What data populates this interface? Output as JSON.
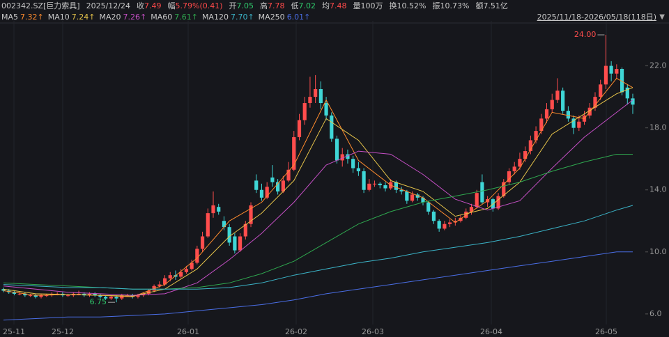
{
  "header": {
    "code": "002342.SZ[巨力索具]",
    "date": "2025/12/24",
    "items": [
      {
        "k": "收",
        "v": "7.49",
        "tone": "up"
      },
      {
        "k": "幅",
        "v": "5.79%(0.41)",
        "tone": "up"
      },
      {
        "k": "开",
        "v": "7.05",
        "tone": "dn"
      },
      {
        "k": "高",
        "v": "7.78",
        "tone": "up"
      },
      {
        "k": "低",
        "v": "7.02",
        "tone": "dn"
      },
      {
        "k": "均",
        "v": "7.48",
        "tone": "up"
      },
      {
        "k": "量",
        "v": "100万",
        "tone": "plain"
      },
      {
        "k": "换",
        "v": "10.52%",
        "tone": "plain"
      },
      {
        "k": "振",
        "v": "10.73%",
        "tone": "plain"
      },
      {
        "k": "额",
        "v": "7.51亿",
        "tone": "plain"
      }
    ],
    "range": "2025/11/18-2026/05/18(118日)",
    "menu": "▼"
  },
  "chart_data": {
    "type": "candlestick",
    "up_color": "#ff4d4d",
    "down_color": "#3fd6d6",
    "ylim": [
      5.5,
      24.9
    ],
    "yticks": [
      {
        "value": 6,
        "label": "6.0"
      },
      {
        "value": 10,
        "label": "10.0"
      },
      {
        "value": 14,
        "label": "14.0"
      },
      {
        "value": 18,
        "label": "18.0"
      },
      {
        "value": 22,
        "label": "22.0"
      }
    ],
    "xlim": [
      0,
      117
    ],
    "xlabels": [
      "25-11",
      "25-12",
      "26-01",
      "26-02",
      "26-03",
      "26-04",
      "26-05"
    ],
    "annotations": [
      {
        "value": 24,
        "label": "24.00",
        "at": "high"
      },
      {
        "value": 6.75,
        "label": "6.75",
        "at": "low"
      }
    ],
    "candles": [
      [
        7.6,
        7.7,
        7.4,
        7.5
      ],
      [
        7.5,
        7.6,
        7.3,
        7.4
      ],
      [
        7.4,
        7.5,
        7.2,
        7.3
      ],
      [
        7.3,
        7.4,
        7.2,
        7.3
      ],
      [
        7.3,
        7.4,
        7.1,
        7.2
      ],
      [
        7.2,
        7.3,
        7.1,
        7.2
      ],
      [
        7.2,
        7.3,
        7.0,
        7.1
      ],
      [
        7.1,
        7.3,
        7.0,
        7.2
      ],
      [
        7.2,
        7.3,
        7.1,
        7.2
      ],
      [
        7.2,
        7.4,
        7.1,
        7.3
      ],
      [
        7.3,
        7.4,
        7.2,
        7.3
      ],
      [
        7.3,
        7.4,
        7.1,
        7.2
      ],
      [
        7.2,
        7.3,
        7.1,
        7.2
      ],
      [
        7.2,
        7.4,
        7.1,
        7.3
      ],
      [
        7.3,
        7.5,
        7.2,
        7.3
      ],
      [
        7.3,
        7.4,
        7.1,
        7.2
      ],
      [
        7.2,
        7.4,
        7.1,
        7.3
      ],
      [
        7.3,
        7.4,
        7.1,
        7.2
      ],
      [
        7.2,
        7.3,
        7.0,
        7.1
      ],
      [
        7.1,
        7.2,
        6.9,
        7.0
      ],
      [
        7.0,
        7.2,
        6.9,
        7.1
      ],
      [
        7.1,
        7.2,
        6.75,
        7.0
      ],
      [
        7.0,
        7.3,
        6.9,
        7.2
      ],
      [
        7.2,
        7.3,
        7.1,
        7.2
      ],
      [
        7.2,
        7.3,
        7.0,
        7.1
      ],
      [
        7.1,
        7.3,
        7.0,
        7.2
      ],
      [
        7.2,
        7.4,
        7.1,
        7.3
      ],
      [
        7.3,
        7.6,
        7.2,
        7.5
      ],
      [
        7.5,
        7.9,
        7.4,
        7.8
      ],
      [
        7.8,
        8.1,
        7.7,
        7.9
      ],
      [
        7.9,
        8.5,
        7.8,
        8.3
      ],
      [
        8.3,
        8.7,
        8.1,
        8.5
      ],
      [
        8.5,
        8.8,
        8.2,
        8.4
      ],
      [
        8.4,
        8.9,
        8.3,
        8.7
      ],
      [
        8.7,
        9.1,
        8.6,
        8.9
      ],
      [
        8.9,
        9.5,
        8.8,
        9.3
      ],
      [
        9.3,
        10.4,
        9.2,
        10.2
      ],
      [
        10.2,
        11.3,
        10.0,
        11.0
      ],
      [
        11.0,
        12.8,
        10.9,
        12.5
      ],
      [
        12.5,
        13.9,
        12.2,
        13.0
      ],
      [
        12.9,
        13.1,
        12.4,
        12.6
      ],
      [
        12.0,
        12.3,
        11.4,
        11.6
      ],
      [
        11.6,
        11.8,
        10.4,
        10.6
      ],
      [
        11.0,
        11.2,
        9.9,
        10.1
      ],
      [
        10.1,
        11.2,
        10.0,
        11.0
      ],
      [
        11.0,
        12.0,
        10.8,
        11.8
      ],
      [
        11.8,
        13.2,
        11.6,
        13.0
      ],
      [
        14.6,
        15.0,
        13.8,
        14.0
      ],
      [
        14.0,
        14.4,
        13.3,
        13.5
      ],
      [
        13.5,
        14.5,
        13.4,
        14.2
      ],
      [
        14.8,
        15.6,
        14.2,
        14.5
      ],
      [
        14.5,
        14.7,
        13.7,
        13.9
      ],
      [
        13.9,
        14.9,
        13.8,
        14.6
      ],
      [
        14.6,
        15.8,
        14.5,
        15.3
      ],
      [
        15.3,
        17.8,
        15.2,
        17.4
      ],
      [
        17.4,
        18.9,
        17.2,
        18.5
      ],
      [
        18.5,
        20.0,
        18.2,
        19.6
      ],
      [
        19.6,
        21.3,
        19.3,
        20.0
      ],
      [
        20.0,
        21.4,
        19.6,
        20.5
      ],
      [
        20.5,
        21.0,
        19.2,
        19.6
      ],
      [
        19.6,
        20.0,
        18.5,
        18.8
      ],
      [
        18.8,
        19.0,
        17.1,
        17.3
      ],
      [
        17.3,
        17.5,
        15.7,
        15.9
      ],
      [
        15.9,
        16.7,
        15.5,
        16.3
      ],
      [
        16.3,
        16.6,
        15.7,
        16.0
      ],
      [
        16.0,
        16.2,
        15.1,
        15.4
      ],
      [
        15.4,
        15.8,
        14.9,
        15.2
      ],
      [
        15.2,
        15.4,
        13.8,
        14.0
      ],
      [
        14.0,
        14.7,
        13.9,
        14.4
      ],
      [
        14.4,
        14.6,
        14.2,
        14.4
      ],
      [
        14.4,
        14.5,
        14.1,
        14.3
      ],
      [
        14.3,
        14.5,
        13.9,
        14.1
      ],
      [
        14.1,
        14.7,
        14.0,
        14.5
      ],
      [
        14.5,
        14.6,
        13.8,
        14.0
      ],
      [
        14.0,
        14.2,
        13.7,
        13.9
      ],
      [
        13.9,
        14.0,
        13.1,
        13.3
      ],
      [
        13.3,
        13.9,
        13.2,
        13.7
      ],
      [
        13.7,
        13.8,
        13.3,
        13.5
      ],
      [
        13.5,
        13.6,
        13.0,
        13.2
      ],
      [
        13.2,
        13.3,
        12.4,
        12.6
      ],
      [
        12.6,
        12.7,
        11.8,
        12.0
      ],
      [
        12.0,
        12.1,
        11.3,
        11.5
      ],
      [
        11.5,
        12.0,
        11.4,
        11.8
      ],
      [
        11.8,
        12.1,
        11.6,
        11.9
      ],
      [
        11.9,
        12.2,
        11.7,
        12.0
      ],
      [
        12.0,
        12.4,
        11.9,
        12.2
      ],
      [
        12.2,
        12.8,
        12.1,
        12.6
      ],
      [
        12.6,
        13.1,
        12.4,
        12.9
      ],
      [
        12.9,
        14.0,
        12.8,
        13.8
      ],
      [
        14.5,
        15.0,
        13.1,
        13.2
      ],
      [
        13.2,
        13.6,
        12.9,
        13.4
      ],
      [
        13.4,
        13.5,
        12.6,
        12.8
      ],
      [
        12.8,
        13.8,
        12.7,
        13.6
      ],
      [
        13.6,
        14.7,
        13.5,
        14.5
      ],
      [
        14.5,
        15.4,
        14.3,
        15.2
      ],
      [
        15.2,
        15.8,
        15.0,
        15.5
      ],
      [
        15.5,
        16.4,
        15.3,
        16.0
      ],
      [
        16.0,
        16.8,
        15.8,
        16.5
      ],
      [
        16.5,
        17.5,
        16.3,
        17.2
      ],
      [
        17.2,
        18.1,
        17.0,
        17.8
      ],
      [
        17.8,
        18.9,
        17.6,
        18.6
      ],
      [
        18.6,
        19.6,
        18.3,
        19.2
      ],
      [
        19.2,
        20.2,
        19.0,
        19.8
      ],
      [
        19.8,
        21.2,
        19.6,
        20.4
      ],
      [
        20.4,
        20.6,
        18.9,
        19.1
      ],
      [
        19.1,
        19.4,
        18.4,
        18.6
      ],
      [
        18.6,
        18.8,
        17.6,
        18.0
      ],
      [
        18.0,
        18.8,
        17.8,
        18.4
      ],
      [
        18.4,
        19.1,
        18.2,
        18.8
      ],
      [
        18.8,
        19.6,
        18.6,
        19.3
      ],
      [
        19.3,
        20.3,
        19.1,
        20.0
      ],
      [
        20.0,
        21.1,
        19.8,
        20.8
      ],
      [
        20.8,
        24.0,
        20.5,
        22.0
      ],
      [
        22.0,
        22.3,
        21.0,
        21.5
      ],
      [
        21.5,
        22.1,
        21.2,
        21.8
      ],
      [
        21.8,
        21.9,
        20.1,
        20.3
      ],
      [
        20.6,
        20.8,
        19.5,
        19.9
      ],
      [
        19.9,
        20.2,
        18.9,
        19.5
      ]
    ],
    "ma_x": [
      0,
      6,
      12,
      18,
      24,
      30,
      36,
      42,
      48,
      54,
      60,
      66,
      72,
      78,
      84,
      90,
      96,
      102,
      108,
      114,
      117
    ],
    "series": [
      {
        "name": "MA5",
        "current": "7.32↑",
        "color": "#ff8c2e",
        "values": [
          7.5,
          7.2,
          7.25,
          7.2,
          7.1,
          7.9,
          9.6,
          12.0,
          13.2,
          15.6,
          19.8,
          15.9,
          14.3,
          13.5,
          11.9,
          13.3,
          15.4,
          19.0,
          18.6,
          21.2,
          20.6
        ]
      },
      {
        "name": "MA10",
        "current": "7.24↑",
        "color": "#e6c44a",
        "values": [
          7.6,
          7.3,
          7.25,
          7.2,
          7.15,
          7.6,
          8.9,
          11.0,
          12.5,
          14.6,
          18.6,
          17.2,
          14.6,
          13.9,
          12.3,
          12.8,
          14.5,
          17.6,
          18.9,
          20.2,
          20.6
        ]
      },
      {
        "name": "MA20",
        "current": "7.26↑",
        "color": "#c44fc4",
        "values": [
          7.8,
          7.6,
          7.4,
          7.3,
          7.2,
          7.3,
          8.0,
          9.5,
          11.2,
          13.2,
          15.6,
          16.5,
          16.3,
          15.0,
          13.4,
          12.7,
          13.3,
          15.4,
          17.4,
          19.0,
          19.8
        ]
      },
      {
        "name": "MA60",
        "current": "7.61↑",
        "color": "#2fa84f",
        "values": [
          8.0,
          7.9,
          7.8,
          7.7,
          7.6,
          7.6,
          7.7,
          8.0,
          8.6,
          9.4,
          10.6,
          11.8,
          12.6,
          13.2,
          13.6,
          14.0,
          14.5,
          15.2,
          15.8,
          16.3,
          16.3
        ]
      },
      {
        "name": "MA120",
        "current": "7.70↑",
        "color": "#3bb4c8",
        "values": [
          7.9,
          7.8,
          7.7,
          7.7,
          7.6,
          7.6,
          7.6,
          7.7,
          8.0,
          8.5,
          8.9,
          9.3,
          9.6,
          10.0,
          10.3,
          10.6,
          11.0,
          11.5,
          12.0,
          12.7,
          13.0
        ]
      },
      {
        "name": "MA250",
        "current": "6.01↑",
        "color": "#4a6ee6",
        "values": [
          5.6,
          5.7,
          5.8,
          5.8,
          5.9,
          6.0,
          6.2,
          6.4,
          6.6,
          6.9,
          7.3,
          7.6,
          7.9,
          8.2,
          8.5,
          8.8,
          9.1,
          9.4,
          9.7,
          10.0,
          10.0
        ]
      }
    ]
  }
}
